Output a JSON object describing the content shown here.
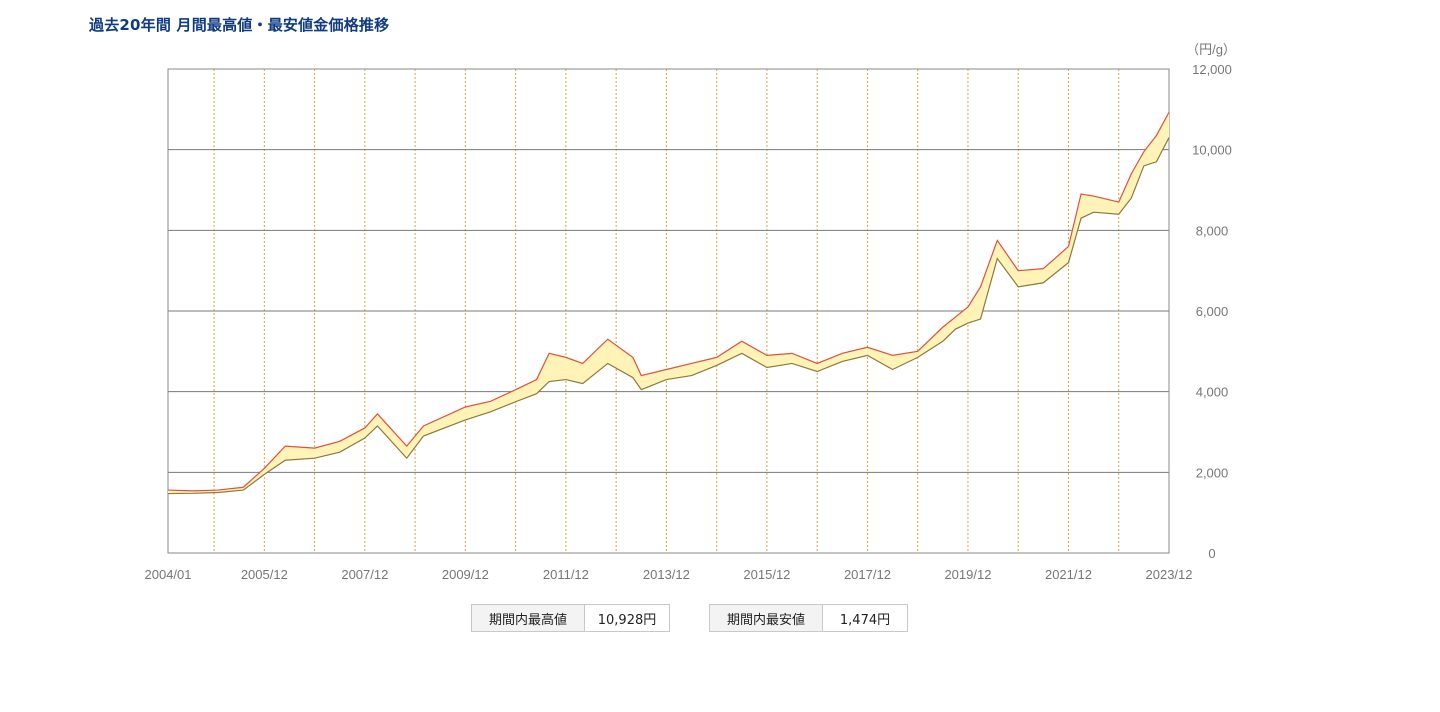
{
  "title": "過去20年間 月間最高値・最安値金価格推移",
  "summary": {
    "high_label": "期間内最高値",
    "high_value": "10,928円",
    "low_label": "期間内最安値",
    "low_value": "1,474円"
  },
  "colors": {
    "title": "#0f3c7e",
    "high_line": "#e0503c",
    "low_line": "#8c7a3c",
    "band_fill": "#fff3b8",
    "grid": "#7a7a7a",
    "vgrid": "#e0a040"
  },
  "chart_data": {
    "type": "area",
    "unit_label": "（円/g）",
    "x_ticks": [
      "2004/01",
      "2005/12",
      "2007/12",
      "2009/12",
      "2011/12",
      "2013/12",
      "2015/12",
      "2017/12",
      "2019/12",
      "2021/12",
      "2023/12"
    ],
    "y_ticks": [
      "0",
      "2,000",
      "4,000",
      "6,000",
      "8,000",
      "10,000",
      "12,000"
    ],
    "ylim": [
      0,
      12000
    ],
    "xlim": [
      "2004/01",
      "2023/12"
    ],
    "grid": true,
    "series": [
      {
        "x": [
          "2004/01",
          "2004/07",
          "2005/01",
          "2005/07",
          "2005/12",
          "2006/05",
          "2006/12",
          "2007/06",
          "2007/12",
          "2008/03",
          "2008/10",
          "2009/02",
          "2009/12",
          "2010/06",
          "2010/12",
          "2011/05",
          "2011/08",
          "2011/12",
          "2012/04",
          "2012/10",
          "2013/04",
          "2013/06",
          "2013/12",
          "2014/06",
          "2014/12",
          "2015/06",
          "2015/12",
          "2016/06",
          "2016/12",
          "2017/06",
          "2017/12",
          "2018/06",
          "2018/12",
          "2019/06",
          "2019/09",
          "2019/12",
          "2020/03",
          "2020/07",
          "2020/12",
          "2021/06",
          "2021/12",
          "2022/03",
          "2022/06",
          "2022/12",
          "2023/03",
          "2023/06",
          "2023/09",
          "2023/12"
        ],
        "values": [
          1560,
          1540,
          1560,
          1630,
          2100,
          2650,
          2600,
          2770,
          3100,
          3450,
          2650,
          3150,
          3620,
          3760,
          4050,
          4300,
          4950,
          4850,
          4700,
          5300,
          4850,
          4400,
          4550,
          4700,
          4850,
          5250,
          4900,
          4950,
          4700,
          4950,
          5100,
          4900,
          5000,
          5600,
          5850,
          6100,
          6600,
          7750,
          7000,
          7050,
          7600,
          8900,
          8850,
          8700,
          9400,
          9950,
          10350,
          10928
        ]
      },
      {
        "x": [
          "2004/01",
          "2004/07",
          "2005/01",
          "2005/07",
          "2005/12",
          "2006/05",
          "2006/12",
          "2007/06",
          "2007/12",
          "2008/03",
          "2008/10",
          "2009/02",
          "2009/12",
          "2010/06",
          "2010/12",
          "2011/05",
          "2011/08",
          "2011/12",
          "2012/04",
          "2012/10",
          "2013/04",
          "2013/06",
          "2013/12",
          "2014/06",
          "2014/12",
          "2015/06",
          "2015/12",
          "2016/06",
          "2016/12",
          "2017/06",
          "2017/12",
          "2018/06",
          "2018/12",
          "2019/06",
          "2019/09",
          "2019/12",
          "2020/03",
          "2020/07",
          "2020/12",
          "2021/06",
          "2021/12",
          "2022/03",
          "2022/06",
          "2022/12",
          "2023/03",
          "2023/06",
          "2023/09",
          "2023/12"
        ],
        "values": [
          1474,
          1480,
          1500,
          1560,
          1950,
          2300,
          2350,
          2500,
          2850,
          3150,
          2350,
          2900,
          3300,
          3500,
          3750,
          3950,
          4250,
          4300,
          4200,
          4700,
          4350,
          4050,
          4300,
          4400,
          4650,
          4950,
          4600,
          4700,
          4500,
          4750,
          4900,
          4550,
          4850,
          5250,
          5550,
          5700,
          5800,
          7300,
          6600,
          6700,
          7200,
          8300,
          8450,
          8400,
          8800,
          9600,
          9700,
          10300
        ]
      }
    ]
  }
}
